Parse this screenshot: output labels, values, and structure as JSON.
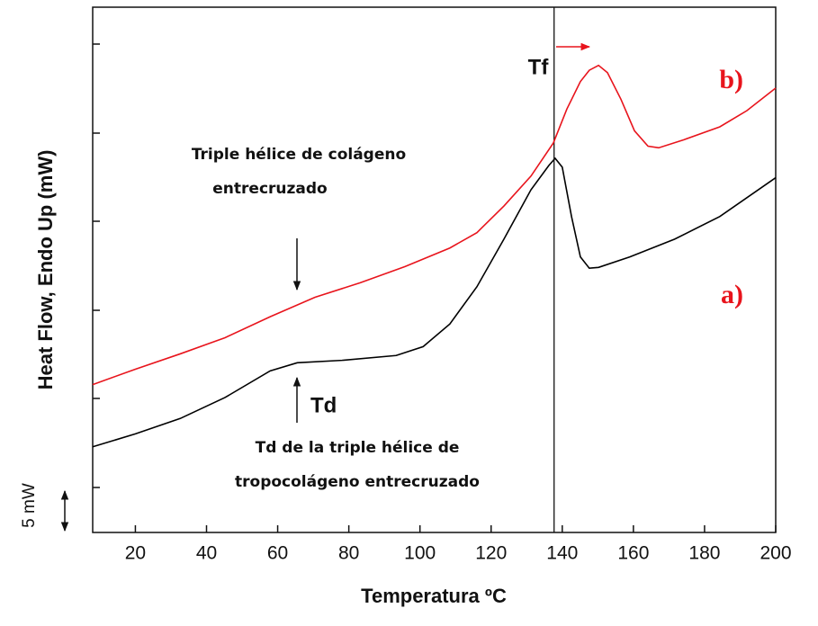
{
  "chart_data": {
    "type": "line",
    "x_label": "Temperatura ºC",
    "y_label": "Heat Flow,  Endo Up (mW)",
    "xlim": [
      8,
      200
    ],
    "xticks": [
      20,
      40,
      60,
      80,
      100,
      120,
      140,
      160,
      180,
      200
    ],
    "ylim": [
      0,
      65
    ],
    "reference_line_x": 137.7,
    "series": [
      {
        "name": "a)",
        "color": "#000000",
        "x": [
          8,
          20,
          32.6,
          45.2,
          57.9,
          65.5,
          78.1,
          93.3,
          100.9,
          108.4,
          116.0,
          123.6,
          131.2,
          136.2,
          138.0,
          140.0,
          142.6,
          145.1,
          147.6,
          150.2,
          159.0,
          171.6,
          184.3,
          200
        ],
        "values": [
          10.6,
          12.2,
          14.1,
          16.7,
          20.0,
          21.0,
          21.3,
          21.9,
          23.0,
          25.8,
          30.4,
          36.3,
          42.4,
          45.4,
          46.3,
          45.2,
          39.1,
          34.1,
          32.7,
          32.8,
          34.1,
          36.3,
          39.1,
          43.9
        ]
      },
      {
        "name": "b)",
        "color": "#e8141c",
        "x": [
          8,
          20,
          32.6,
          45.2,
          57.9,
          70.5,
          83.2,
          95.8,
          108.4,
          116.0,
          123.6,
          131.2,
          137.5,
          141.3,
          145.1,
          147.6,
          150.2,
          152.7,
          156.5,
          160.3,
          164.1,
          167.1,
          174.2,
          184.3,
          191.9,
          200
        ],
        "values": [
          18.3,
          20.2,
          22.1,
          24.1,
          26.7,
          29.1,
          30.9,
          32.9,
          35.2,
          37.1,
          40.4,
          44.1,
          48.2,
          52.4,
          55.8,
          57.2,
          57.8,
          56.9,
          53.6,
          49.7,
          47.8,
          47.6,
          48.6,
          50.2,
          52.2,
          55.0
        ]
      }
    ],
    "annotations": {
      "tf": "Tf",
      "td": "Td",
      "triple_helix": [
        "Triple hélice de colágeno",
        "entrecruzado"
      ],
      "td_note": [
        "Td de la triple hélice de",
        "tropocolágeno entrecruzado"
      ],
      "scale_bar": "5 mW"
    }
  }
}
